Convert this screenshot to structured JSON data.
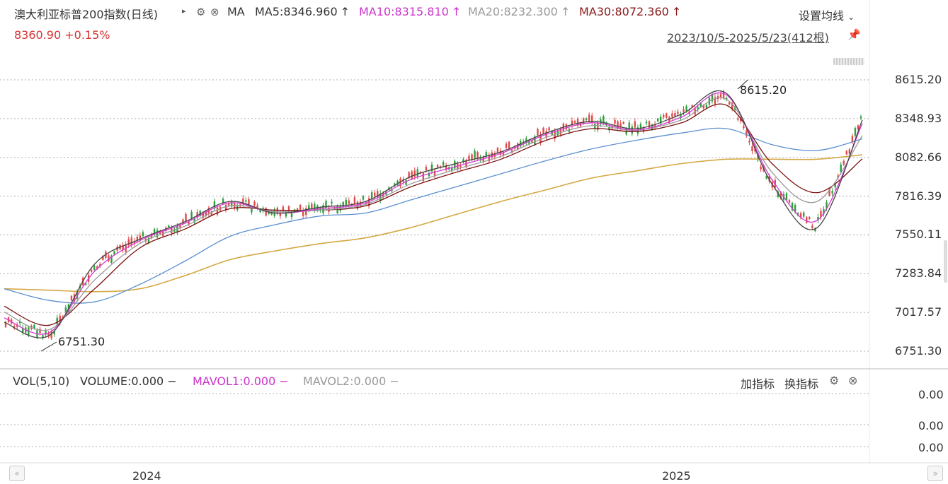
{
  "header": {
    "title": "澳大利亚标普200指数(日线)",
    "ma_label": "MA",
    "ma5": "MA5:8346.960",
    "ma10": "MA10:8315.810",
    "ma20": "MA20:8232.300",
    "ma30": "MA30:8072.360",
    "arrow_up": "↑",
    "price": "8360.90  +0.15%",
    "settings": "设置均线",
    "date_range": "2023/10/5-2025/5/23(412根)"
  },
  "volume_panel": {
    "title": "VOL(5,10)",
    "volume": "VOLUME:0.000",
    "mavol1": "MAVOL1:0.000",
    "mavol2": "MAVOL2:0.000",
    "dash": "−",
    "add_indicator": "加指标",
    "swap_indicator": "换指标",
    "y_labels": [
      "0.00",
      "0.00",
      "0.00"
    ]
  },
  "icons": {
    "gear": "gear-icon",
    "close": "close-icon",
    "pin": "pin-icon",
    "caret": "caret-right-icon"
  },
  "colors": {
    "up": "#e04a4a",
    "down": "#2e9e3e",
    "ma5": "#444444",
    "ma10": "#d63bd6",
    "ma20": "#9a9a9a",
    "ma30": "#7a1010",
    "ma60": "#5b8fd0",
    "ma120": "#d4a843"
  },
  "chart_data": {
    "type": "line",
    "title": "澳大利亚标普200指数(日线)",
    "ylim": [
      6751.3,
      8615.2
    ],
    "y_ticks": [
      "8615.20",
      "8348.93",
      "8082.66",
      "7816.39",
      "7550.11",
      "7283.84",
      "7017.57",
      "6751.30"
    ],
    "x_ticks": [
      "2024",
      "2025"
    ],
    "annotations": [
      {
        "text": "8615.20",
        "x": "2025-02",
        "y": 8615.2
      },
      {
        "text": "6751.30",
        "x": "2023-10",
        "y": 6751.3
      }
    ],
    "x": [
      "2023-10",
      "2023-11",
      "2023-12",
      "2024-01",
      "2024-02",
      "2024-03",
      "2024-04",
      "2024-05",
      "2024-06",
      "2024-07",
      "2024-08",
      "2024-09",
      "2024-10",
      "2024-11",
      "2024-12",
      "2025-01",
      "2025-02",
      "2025-03",
      "2025-04",
      "2025-05"
    ],
    "series": [
      {
        "name": "MA5",
        "values": [
          6950,
          6860,
          7350,
          7520,
          7640,
          7780,
          7700,
          7740,
          7780,
          7950,
          8040,
          8120,
          8250,
          8330,
          8280,
          8380,
          8520,
          7900,
          7600,
          8340
        ]
      },
      {
        "name": "MA10",
        "values": [
          6980,
          6880,
          7300,
          7510,
          7630,
          7770,
          7700,
          7730,
          7770,
          7930,
          8020,
          8110,
          8240,
          8320,
          8270,
          8360,
          8510,
          7930,
          7650,
          8315
        ]
      },
      {
        "name": "MA20",
        "values": [
          7020,
          6900,
          7240,
          7490,
          7610,
          7750,
          7710,
          7720,
          7760,
          7900,
          8000,
          8090,
          8220,
          8300,
          8270,
          8340,
          8480,
          7980,
          7780,
          8232
        ]
      },
      {
        "name": "MA30",
        "values": [
          7060,
          6930,
          7180,
          7460,
          7590,
          7730,
          7720,
          7720,
          7750,
          7880,
          7980,
          8070,
          8200,
          8280,
          8260,
          8320,
          8440,
          8040,
          7840,
          8072
        ]
      },
      {
        "name": "MA60",
        "values": [
          7180,
          7100,
          7090,
          7210,
          7370,
          7540,
          7620,
          7680,
          7700,
          7790,
          7880,
          7970,
          8060,
          8140,
          8200,
          8250,
          8280,
          8170,
          8130,
          8210
        ]
      },
      {
        "name": "MA120",
        "values": [
          7180,
          7170,
          7160,
          7180,
          7270,
          7380,
          7440,
          7490,
          7530,
          7600,
          7690,
          7780,
          7860,
          7940,
          7990,
          8040,
          8070,
          8070,
          8070,
          8100
        ]
      }
    ]
  }
}
